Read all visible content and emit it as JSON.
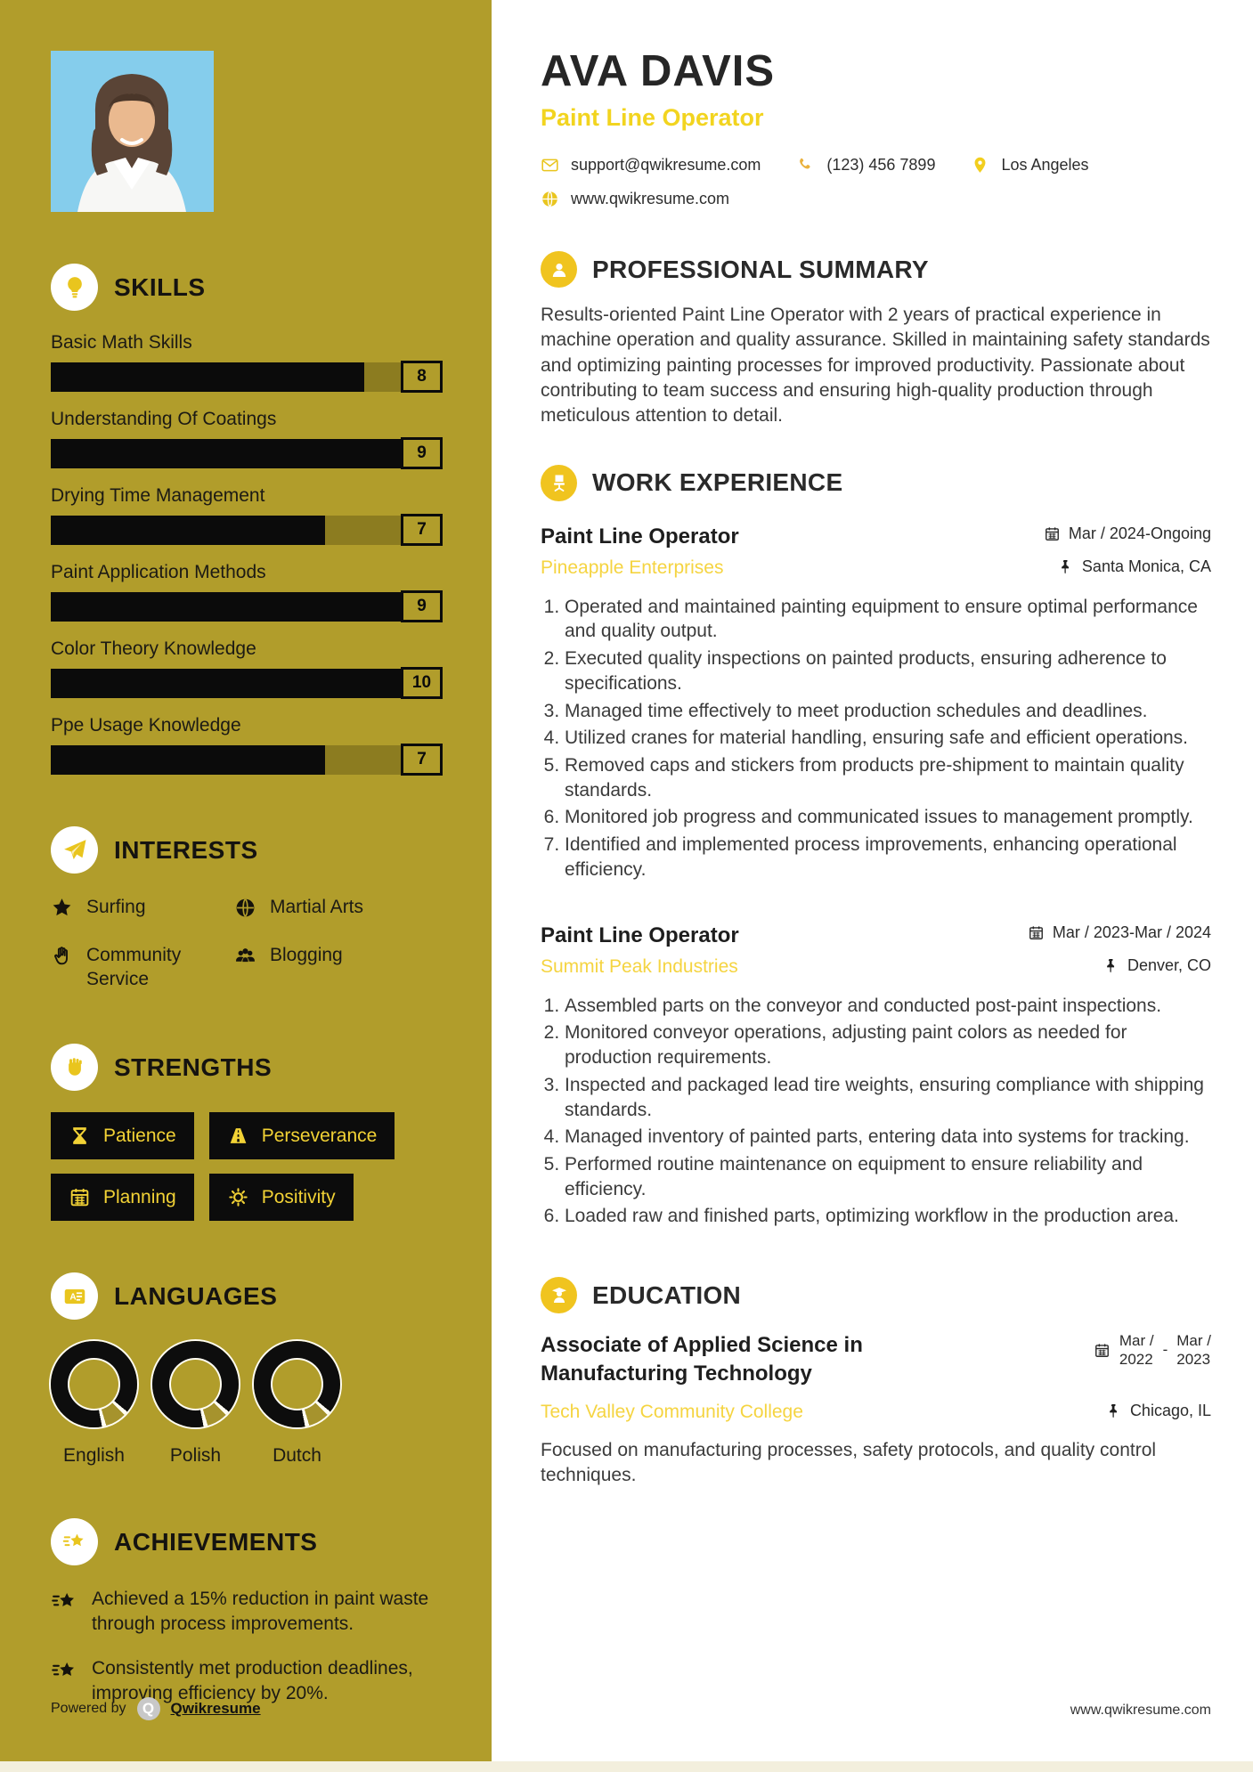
{
  "colors": {
    "sidebar_olive": "#b19d2b",
    "bar_track": "#8c7c20",
    "bar_fill": "#0b0b0b",
    "accent_yellow": "#f0c41f",
    "role_yellow": "#f2d41f",
    "company_yellow": "#f5d441",
    "pill_bg": "#0c0c0c",
    "pill_text": "#f2d235"
  },
  "sidebar": {
    "skills": {
      "title": "SKILLS",
      "items": [
        {
          "label": "Basic Math Skills",
          "score": "8",
          "percent": 80
        },
        {
          "label": "Understanding Of Coatings",
          "score": "9",
          "percent": 90
        },
        {
          "label": "Drying Time Management",
          "score": "7",
          "percent": 70
        },
        {
          "label": "Paint Application Methods",
          "score": "9",
          "percent": 90
        },
        {
          "label": "Color Theory Knowledge",
          "score": "10",
          "percent": 100
        },
        {
          "label": "Ppe Usage Knowledge",
          "score": "7",
          "percent": 70
        }
      ]
    },
    "interests": {
      "title": "INTERESTS",
      "items": [
        {
          "icon": "star-icon",
          "label": "Surfing"
        },
        {
          "icon": "globe-icon",
          "label": "Martial Arts"
        },
        {
          "icon": "hand-icon",
          "label": "Community Service"
        },
        {
          "icon": "people-icon",
          "label": "Blogging"
        }
      ]
    },
    "strengths": {
      "title": "STRENGTHS",
      "items": [
        {
          "icon": "hourglass-icon",
          "label": "Patience"
        },
        {
          "icon": "road-icon",
          "label": "Perseverance"
        },
        {
          "icon": "calendar-icon",
          "label": "Planning"
        },
        {
          "icon": "sun-icon",
          "label": "Positivity"
        }
      ]
    },
    "languages": {
      "title": "LANGUAGES",
      "items": [
        {
          "label": "English",
          "level_percent": 88
        },
        {
          "label": "Polish",
          "level_percent": 88
        },
        {
          "label": "Dutch",
          "level_percent": 88
        }
      ]
    },
    "achievements": {
      "title": "ACHIEVEMENTS",
      "items": [
        "Achieved a 15% reduction in paint waste through process improvements.",
        "Consistently met production deadlines, improving efficiency by 20%."
      ]
    },
    "powered_by": {
      "prefix": "Powered by",
      "logo": "Q",
      "brand": "Qwikresume"
    }
  },
  "header": {
    "name": "AVA DAVIS",
    "role": "Paint Line Operator",
    "email": "support@qwikresume.com",
    "phone": "(123) 456 7899",
    "location": "Los Angeles",
    "website": "www.qwikresume.com"
  },
  "summary": {
    "title": "PROFESSIONAL SUMMARY",
    "text": "Results-oriented Paint Line Operator with 2 years of practical experience in machine operation and quality assurance. Skilled in maintaining safety standards and optimizing painting processes for improved productivity. Passionate about contributing to team success and ensuring high-quality production through meticulous attention to detail."
  },
  "experience": {
    "title": "WORK EXPERIENCE",
    "jobs": [
      {
        "role": "Paint Line Operator",
        "company": "Pineapple Enterprises",
        "dates": "Mar / 2024-Ongoing",
        "location": "Santa Monica, CA",
        "bullets": [
          "Operated and maintained painting equipment to ensure optimal performance and quality output.",
          "Executed quality inspections on painted products, ensuring adherence to specifications.",
          "Managed time effectively to meet production schedules and deadlines.",
          "Utilized cranes for material handling, ensuring safe and efficient operations.",
          "Removed caps and stickers from products pre-shipment to maintain quality standards.",
          "Monitored job progress and communicated issues to management promptly.",
          "Identified and implemented process improvements, enhancing operational efficiency."
        ]
      },
      {
        "role": "Paint Line Operator",
        "company": "Summit Peak Industries",
        "dates": "Mar / 2023-Mar / 2024",
        "location": "Denver, CO",
        "bullets": [
          "Assembled parts on the conveyor and conducted post-paint inspections.",
          "Monitored conveyor operations, adjusting paint colors as needed for production requirements.",
          "Inspected and packaged lead tire weights, ensuring compliance with shipping standards.",
          "Managed inventory of painted parts, entering data into systems for tracking.",
          "Performed routine maintenance on equipment to ensure reliability and efficiency.",
          "Loaded raw and finished parts, optimizing workflow in the production area."
        ]
      }
    ]
  },
  "education": {
    "title": "EDUCATION",
    "degree": "Associate of Applied Science in Manufacturing Technology",
    "school": "Tech Valley Community College",
    "date_start_l1": "Mar /",
    "date_start_l2": "2022",
    "separator": "-",
    "date_end_l1": "Mar /",
    "date_end_l2": "2023",
    "location": "Chicago, IL",
    "description": "Focused on manufacturing processes, safety protocols, and quality control techniques."
  },
  "footer": {
    "website": "www.qwikresume.com"
  }
}
